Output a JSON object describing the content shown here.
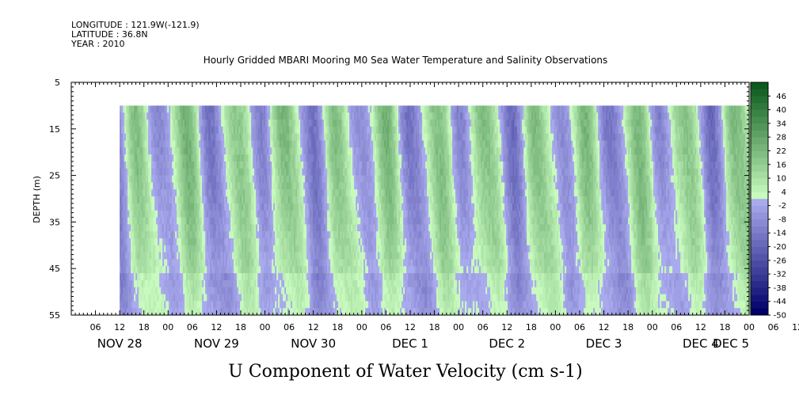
{
  "header": {
    "longitude": "LONGITUDE : 121.9W(-121.9)",
    "latitude": "LATITUDE : 36.8N",
    "year": "YEAR : 2010"
  },
  "chart_data": {
    "type": "heatmap",
    "title": "Hourly Gridded MBARI Mooring M0 Sea Water Temperature and Salinity Observations",
    "xlabel": "U Component of Water Velocity (cm s-1)",
    "ylabel": "DEPTH (m)",
    "y_ticks": [
      "5",
      "15",
      "25",
      "35",
      "45",
      "55"
    ],
    "ylim": [
      55,
      5
    ],
    "x_hour_ticks": [
      "06",
      "12",
      "18",
      "00",
      "06",
      "12",
      "18",
      "00",
      "06",
      "12",
      "18",
      "00",
      "06",
      "12",
      "18",
      "00",
      "06",
      "12",
      "18",
      "00",
      "06",
      "12",
      "18",
      "00",
      "06",
      "12",
      "18",
      "00",
      "06",
      "12",
      "18",
      "00",
      "06",
      "12",
      "18",
      "00",
      "06",
      "12",
      "18",
      "00"
    ],
    "x_day_labels": [
      "NOV 28",
      "NOV 29",
      "NOV 30",
      "DEC  1",
      "DEC  2",
      "DEC  3",
      "DEC  4",
      "DEC  5"
    ],
    "x_range": [
      "2010-11-28 00:00",
      "2010-12-05 00:00"
    ],
    "data_extent": {
      "time_start": "2010-11-28 12:00",
      "time_end": "2010-12-04 23:00",
      "depth_top": 10,
      "depth_bottom": 55
    },
    "colorbar_labels": [
      "46",
      "40",
      "34",
      "28",
      "22",
      "16",
      "10",
      "4",
      "-2",
      "-8",
      "-14",
      "-20",
      "-26",
      "-32",
      "-38",
      "-44",
      "-50"
    ],
    "colorbar_range": [
      -50,
      52
    ],
    "colorbar_step": 3,
    "colors": {
      "positive_peak": "#00e040",
      "positive_mid": "#5cf07a",
      "near_zero": "#b8f7b0",
      "negative_light": "#a8a8f4",
      "negative_mid": "#8c8cf0",
      "negative_dark": "#6e6ee8"
    },
    "grid": false,
    "legend": "colorbar-right",
    "daily_pattern": [
      {
        "day": "2010-11-28",
        "description": "alternating bands; negative (blue) near 12-13h, 06-07h Nov 29; positive (green) near 16h and 00h"
      },
      {
        "day": "2010-12-01",
        "description": "mostly positive (green); strongest near 00h, 06h, 18h"
      },
      {
        "day": "2010-12-02",
        "description": "positive near 06h and 18h; negative near 12h and late"
      },
      {
        "day": "2010-12-04",
        "description": "mixed; negative near 00h and late day; positive near 10h and 20h"
      }
    ]
  }
}
